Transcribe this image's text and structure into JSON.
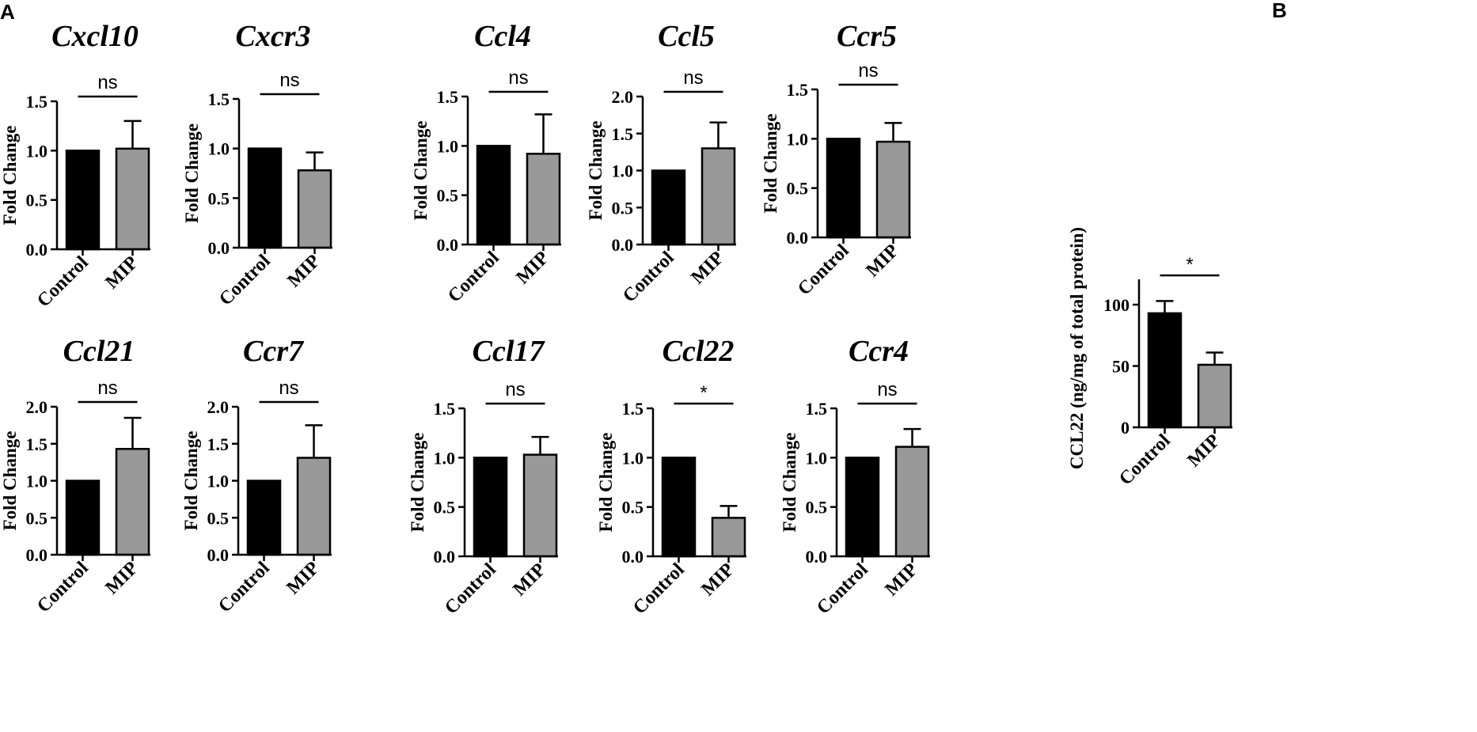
{
  "labels": {
    "panel_a": "A",
    "panel_b": "B"
  },
  "colors": {
    "control": "#000000",
    "mip": "#999999"
  },
  "chart_data": [
    {
      "type": "bar",
      "panel": "A",
      "title": "Cxcl10",
      "ylabel": "Fold Change",
      "categories": [
        "Control",
        "MIP"
      ],
      "values": [
        1.0,
        1.02
      ],
      "errors": [
        0,
        0.28
      ],
      "ylim": [
        0,
        1.5
      ],
      "yticks": [
        "0.0",
        "0.5",
        "1.0",
        "1.5"
      ],
      "significance": "ns"
    },
    {
      "type": "bar",
      "panel": "A",
      "title": "Cxcr3",
      "ylabel": "Fold Change",
      "categories": [
        "Control",
        "MIP"
      ],
      "values": [
        1.0,
        0.78
      ],
      "errors": [
        0,
        0.18
      ],
      "ylim": [
        0,
        1.5
      ],
      "yticks": [
        "0.0",
        "0.5",
        "1.0",
        "1.5"
      ],
      "significance": "ns"
    },
    {
      "type": "bar",
      "panel": "A",
      "title": "Ccl4",
      "ylabel": "Fold Change",
      "categories": [
        "Control",
        "MIP"
      ],
      "values": [
        1.0,
        0.92
      ],
      "errors": [
        0,
        0.4
      ],
      "ylim": [
        0,
        1.5
      ],
      "yticks": [
        "0.0",
        "0.5",
        "1.0",
        "1.5"
      ],
      "significance": "ns"
    },
    {
      "type": "bar",
      "panel": "A",
      "title": "Ccl5",
      "ylabel": "Fold Change",
      "categories": [
        "Control",
        "MIP"
      ],
      "values": [
        1.0,
        1.3
      ],
      "errors": [
        0,
        0.35
      ],
      "ylim": [
        0,
        2.0
      ],
      "yticks": [
        "0.0",
        "0.5",
        "1.0",
        "1.5",
        "2.0"
      ],
      "significance": "ns"
    },
    {
      "type": "bar",
      "panel": "A",
      "title": "Ccr5",
      "ylabel": "Fold Change",
      "categories": [
        "Control",
        "MIP"
      ],
      "values": [
        1.0,
        0.97
      ],
      "errors": [
        0,
        0.19
      ],
      "ylim": [
        0,
        1.5
      ],
      "yticks": [
        "0.0",
        "0.5",
        "1.0",
        "1.5"
      ],
      "significance": "ns"
    },
    {
      "type": "bar",
      "panel": "A",
      "title": "Ccl21",
      "ylabel": "Fold Change",
      "categories": [
        "Control",
        "MIP"
      ],
      "values": [
        1.0,
        1.43
      ],
      "errors": [
        0,
        0.42
      ],
      "ylim": [
        0,
        2.0
      ],
      "yticks": [
        "0.0",
        "0.5",
        "1.0",
        "1.5",
        "2.0"
      ],
      "significance": "ns"
    },
    {
      "type": "bar",
      "panel": "A",
      "title": "Ccr7",
      "ylabel": "Fold Change",
      "categories": [
        "Control",
        "MIP"
      ],
      "values": [
        1.0,
        1.31
      ],
      "errors": [
        0,
        0.44
      ],
      "ylim": [
        0,
        2.0
      ],
      "yticks": [
        "0.0",
        "0.5",
        "1.0",
        "1.5",
        "2.0"
      ],
      "significance": "ns"
    },
    {
      "type": "bar",
      "panel": "A",
      "title": "Ccl17",
      "ylabel": "Fold Change",
      "categories": [
        "Control",
        "MIP"
      ],
      "values": [
        1.0,
        1.03
      ],
      "errors": [
        0,
        0.18
      ],
      "ylim": [
        0,
        1.5
      ],
      "yticks": [
        "0.0",
        "0.5",
        "1.0",
        "1.5"
      ],
      "significance": "ns"
    },
    {
      "type": "bar",
      "panel": "A",
      "title": "Ccl22",
      "ylabel": "Fold Change",
      "categories": [
        "Control",
        "MIP"
      ],
      "values": [
        1.0,
        0.39
      ],
      "errors": [
        0,
        0.12
      ],
      "ylim": [
        0,
        1.5
      ],
      "yticks": [
        "0.0",
        "0.5",
        "1.0",
        "1.5"
      ],
      "significance": "*"
    },
    {
      "type": "bar",
      "panel": "A",
      "title": "Ccr4",
      "ylabel": "Fold Change",
      "categories": [
        "Control",
        "MIP"
      ],
      "values": [
        1.0,
        1.11
      ],
      "errors": [
        0,
        0.18
      ],
      "ylim": [
        0,
        1.5
      ],
      "yticks": [
        "0.0",
        "0.5",
        "1.0",
        "1.5"
      ],
      "significance": "ns"
    },
    {
      "type": "bar",
      "panel": "B",
      "title": "",
      "ylabel": "CCL22 (ng/mg of total protein)",
      "categories": [
        "Control",
        "MIP"
      ],
      "values": [
        93,
        51
      ],
      "errors": [
        10,
        10
      ],
      "ylim": [
        0,
        120
      ],
      "yticks": [
        "0",
        "50",
        "100"
      ],
      "significance": "*"
    }
  ]
}
